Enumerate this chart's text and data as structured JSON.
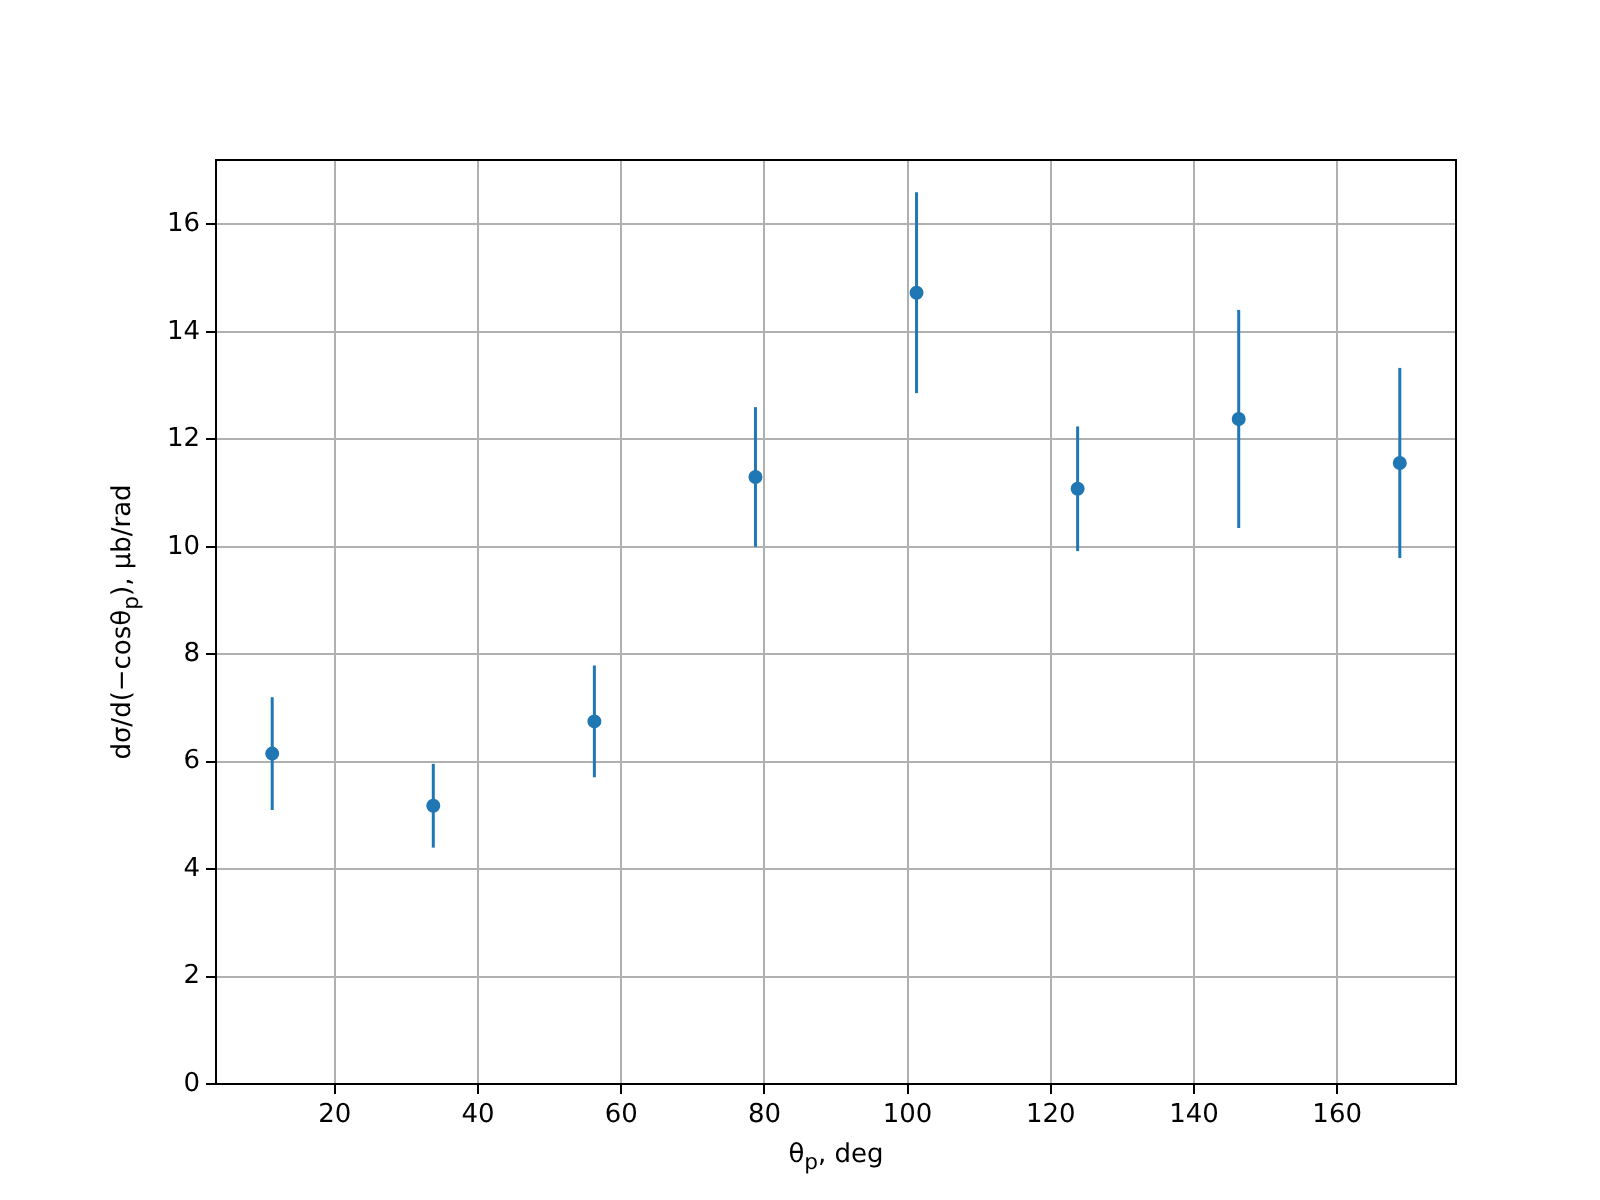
{
  "chart_data": {
    "type": "scatter",
    "xlabel": "θ$_{p}$, deg",
    "ylabel": "dσ/d(−cosθ$_{p}$), μb/rad",
    "x": [
      11.25,
      33.75,
      56.25,
      78.75,
      101.25,
      123.75,
      146.25,
      168.75
    ],
    "values": [
      6.15,
      5.18,
      6.75,
      11.3,
      14.73,
      11.08,
      12.38,
      11.56
    ],
    "errors": [
      1.05,
      0.78,
      1.04,
      1.3,
      1.87,
      1.16,
      2.03,
      1.77
    ],
    "color": "#1f77b4",
    "marker": "circle",
    "xlim": [
      3.4,
      176.6
    ],
    "ylim": [
      0,
      17.2
    ],
    "xticks": [
      20,
      40,
      60,
      80,
      100,
      120,
      140,
      160
    ],
    "yticks": [
      0,
      2,
      4,
      6,
      8,
      10,
      12,
      14,
      16
    ],
    "grid": true
  }
}
